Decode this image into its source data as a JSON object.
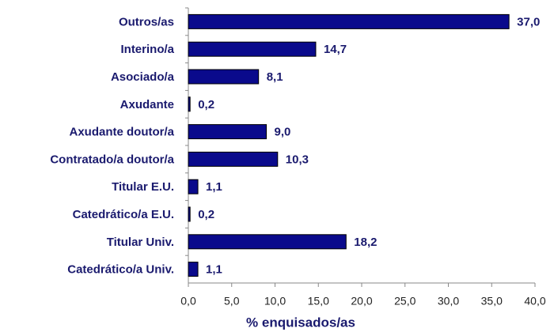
{
  "chart_data": {
    "type": "bar",
    "orientation": "horizontal",
    "x_label": "% enquisados/as",
    "categories": [
      "Outros/as",
      "Interino/a",
      "Asociado/a",
      "Axudante",
      "Axudante doutor/a",
      "Contratado/a doutor/a",
      "Titular E.U.",
      "Catedrático/a E.U.",
      "Titular Univ.",
      "Catedrático/a Univ."
    ],
    "values": [
      37.0,
      14.7,
      8.1,
      0.2,
      9.0,
      10.3,
      1.1,
      0.2,
      18.2,
      1.1
    ],
    "value_labels": [
      "37,0",
      "14,7",
      "8,1",
      "0,2",
      "9,0",
      "10,3",
      "1,1",
      "0,2",
      "18,2",
      "1,1"
    ],
    "color": "#0a0a8c",
    "xlim": [
      0,
      40
    ],
    "xticks": [
      {
        "value": 0,
        "label": "0,0"
      },
      {
        "value": 5,
        "label": "5,0"
      },
      {
        "value": 10,
        "label": "10,0"
      },
      {
        "value": 15,
        "label": "15,0"
      },
      {
        "value": 20,
        "label": "20,0"
      },
      {
        "value": 25,
        "label": "25,0"
      },
      {
        "value": 30,
        "label": "30,0"
      },
      {
        "value": 35,
        "label": "35,0"
      },
      {
        "value": 40,
        "label": "40,0"
      }
    ],
    "grid": false
  }
}
